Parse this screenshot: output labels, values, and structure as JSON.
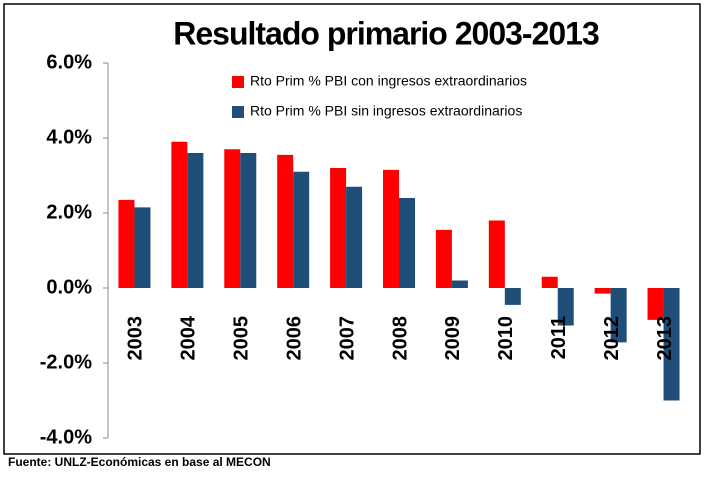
{
  "chart_data": {
    "type": "bar",
    "title": "Resultado primario 2003-2013",
    "categories": [
      "2003",
      "2004",
      "2005",
      "2006",
      "2007",
      "2008",
      "2009",
      "2010",
      "2011",
      "2012",
      "2013"
    ],
    "series": [
      {
        "name": "Rto Prim % PBI con ingresos extraordinarios",
        "color": "#ff0000",
        "values": [
          2.35,
          3.9,
          3.7,
          3.55,
          3.2,
          3.15,
          1.55,
          1.8,
          0.3,
          -0.15,
          -0.85
        ]
      },
      {
        "name": "Rto Prim % PBI sin ingresos extraordinarios",
        "color": "#1f4e79",
        "values": [
          2.15,
          3.6,
          3.6,
          3.1,
          2.7,
          2.4,
          0.2,
          -0.45,
          -1.0,
          -1.45,
          -3.0
        ]
      }
    ],
    "ylim": [
      -4,
      6
    ],
    "yticks": [
      {
        "value": -4,
        "label": "-4.0%"
      },
      {
        "value": -2,
        "label": "-2.0%"
      },
      {
        "value": 0,
        "label": "0.0%"
      },
      {
        "value": 2,
        "label": "2.0%"
      },
      {
        "value": 4,
        "label": "4.0%"
      },
      {
        "value": 6,
        "label": "6.0%"
      }
    ],
    "legend": "top",
    "source": "Fuente: UNLZ-Económicas en base al MECON"
  }
}
